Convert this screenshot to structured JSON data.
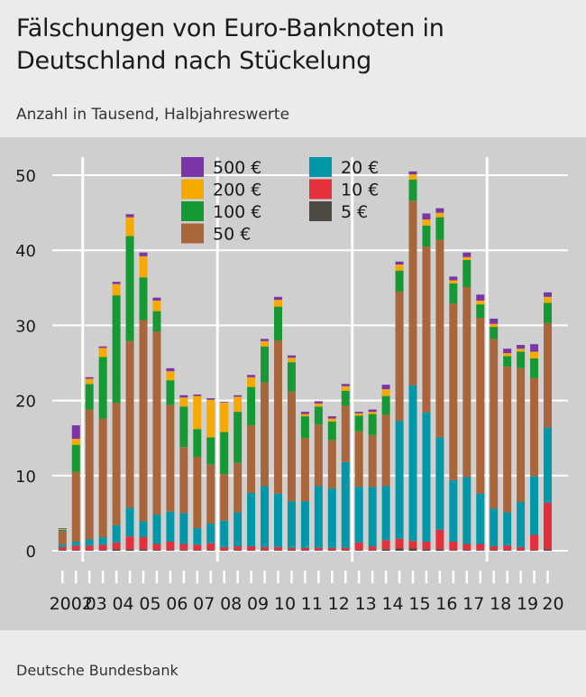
{
  "header": {
    "title_line1": "Fälschungen von Euro-Banknoten in",
    "title_line2": "Deutschland nach Stückelung",
    "subtitle": "Anzahl in Tausend, Halbjahreswerte"
  },
  "footer": {
    "source": "Deutsche Bundesbank"
  },
  "colors": {
    "500": "#7b35a6",
    "200": "#f6aa00",
    "100": "#169935",
    "50": "#a8663a",
    "20": "#0097a8",
    "10": "#e3303a",
    "5": "#4d4944",
    "background": "#cfcfcf",
    "grid": "#ffffff"
  },
  "chart_data": {
    "type": "bar",
    "stacked": true,
    "ylim": [
      0,
      50
    ],
    "yticks": [
      0,
      10,
      20,
      30,
      40,
      50
    ],
    "grid": true,
    "legend_position": "top-center",
    "year_labels": [
      "2002",
      "03",
      "04",
      "05",
      "06",
      "07",
      "08",
      "09",
      "10",
      "11",
      "12",
      "13",
      "14",
      "15",
      "16",
      "17",
      "18",
      "19",
      "20"
    ],
    "categories": [
      "2002 H1",
      "2002 H2",
      "2003 H1",
      "2003 H2",
      "2004 H1",
      "2004 H2",
      "2005 H1",
      "2005 H2",
      "2006 H1",
      "2006 H2",
      "2007 H1",
      "2007 H2",
      "2008 H1",
      "2008 H2",
      "2009 H1",
      "2009 H2",
      "2010 H1",
      "2010 H2",
      "2011 H1",
      "2011 H2",
      "2012 H1",
      "2012 H2",
      "2013 H1",
      "2013 H2",
      "2014 H1",
      "2014 H2",
      "2015 H1",
      "2015 H2",
      "2016 H1",
      "2016 H2",
      "2017 H1",
      "2017 H2",
      "2018 H1",
      "2018 H2",
      "2019 H1",
      "2019 H2",
      "2020 H1"
    ],
    "series": [
      {
        "name": "5 €",
        "key": "5",
        "values": [
          0.1,
          0.1,
          0.1,
          0.1,
          0.2,
          0.2,
          0.2,
          0.1,
          0.1,
          0.1,
          0.1,
          0.1,
          0.1,
          0.1,
          0.1,
          0.1,
          0.1,
          0.1,
          0.1,
          0.1,
          0.1,
          0.1,
          0.1,
          0.1,
          0.2,
          0.3,
          0.3,
          0.2,
          0.2,
          0.1,
          0.1,
          0.1,
          0.1,
          0.1,
          0.1,
          0.1,
          0.2
        ]
      },
      {
        "name": "10 €",
        "key": "10",
        "values": [
          0.4,
          0.6,
          0.6,
          0.7,
          0.9,
          1.7,
          1.6,
          0.8,
          1.1,
          0.8,
          0.7,
          0.9,
          0.4,
          0.5,
          0.5,
          0.4,
          0.4,
          0.3,
          0.3,
          0.3,
          0.3,
          0.3,
          1.0,
          0.5,
          1.2,
          1.3,
          1.0,
          1.0,
          2.6,
          1.1,
          0.8,
          0.8,
          0.5,
          0.6,
          0.4,
          2.0,
          6.2
        ]
      },
      {
        "name": "20 €",
        "key": "20",
        "values": [
          0.3,
          0.5,
          0.8,
          1.0,
          2.3,
          3.8,
          2.1,
          3.9,
          4.0,
          4.1,
          2.2,
          2.6,
          3.5,
          4.5,
          7.1,
          8.1,
          7.1,
          6.2,
          6.2,
          8.2,
          7.9,
          11.4,
          7.4,
          7.9,
          7.2,
          15.7,
          20.7,
          17.2,
          12.3,
          8.2,
          8.9,
          6.7,
          5.0,
          4.4,
          6.0,
          7.8,
          10.0
        ]
      },
      {
        "name": "50 €",
        "key": "50",
        "values": [
          1.8,
          9.3,
          17.3,
          15.8,
          16.3,
          22.2,
          26.8,
          24.4,
          14.2,
          8.8,
          9.5,
          7.9,
          6.2,
          6.6,
          9.0,
          13.8,
          20.4,
          14.6,
          8.4,
          8.2,
          6.4,
          7.5,
          7.4,
          6.9,
          9.5,
          17.2,
          24.6,
          22.1,
          26.3,
          23.5,
          25.3,
          23.4,
          22.6,
          19.4,
          17.8,
          13.1,
          13.9
        ]
      },
      {
        "name": "100 €",
        "key": "100",
        "values": [
          0.2,
          3.6,
          3.4,
          8.2,
          14.3,
          14.0,
          5.7,
          2.7,
          3.3,
          5.4,
          3.7,
          3.6,
          5.6,
          6.8,
          5.1,
          4.8,
          4.5,
          3.9,
          2.9,
          2.4,
          2.5,
          2.0,
          2.1,
          2.8,
          2.5,
          2.8,
          2.8,
          2.8,
          3.0,
          2.7,
          3.6,
          1.8,
          1.6,
          1.4,
          2.2,
          2.6,
          2.7
        ]
      },
      {
        "name": "200 €",
        "key": "200",
        "values": [
          0.1,
          0.8,
          0.7,
          1.2,
          1.5,
          2.5,
          2.8,
          1.4,
          1.2,
          1.2,
          4.4,
          5.0,
          3.9,
          2.0,
          1.3,
          0.7,
          0.9,
          0.6,
          0.3,
          0.4,
          0.4,
          0.6,
          0.3,
          0.3,
          0.9,
          0.8,
          0.7,
          0.8,
          0.6,
          0.4,
          0.4,
          0.5,
          0.4,
          0.4,
          0.4,
          0.9,
          0.8
        ]
      },
      {
        "name": "500 €",
        "key": "500",
        "values": [
          0.1,
          1.8,
          0.2,
          0.2,
          0.3,
          0.4,
          0.5,
          0.4,
          0.4,
          0.3,
          0.2,
          0.2,
          0.1,
          0.2,
          0.3,
          0.3,
          0.4,
          0.3,
          0.3,
          0.3,
          0.3,
          0.3,
          0.2,
          0.3,
          0.6,
          0.4,
          0.4,
          0.8,
          0.6,
          0.5,
          0.6,
          0.8,
          0.7,
          0.6,
          0.5,
          1.0,
          0.6
        ]
      }
    ],
    "legend": [
      {
        "name": "500 €",
        "key": "500",
        "col": 0,
        "row": 0
      },
      {
        "name": "200 €",
        "key": "200",
        "col": 0,
        "row": 1
      },
      {
        "name": "100 €",
        "key": "100",
        "col": 0,
        "row": 2
      },
      {
        "name": "50 €",
        "key": "50",
        "col": 0,
        "row": 3
      },
      {
        "name": "20 €",
        "key": "20",
        "col": 1,
        "row": 0
      },
      {
        "name": "10 €",
        "key": "10",
        "col": 1,
        "row": 1
      },
      {
        "name": "5 €",
        "key": "5",
        "col": 1,
        "row": 2
      }
    ]
  }
}
